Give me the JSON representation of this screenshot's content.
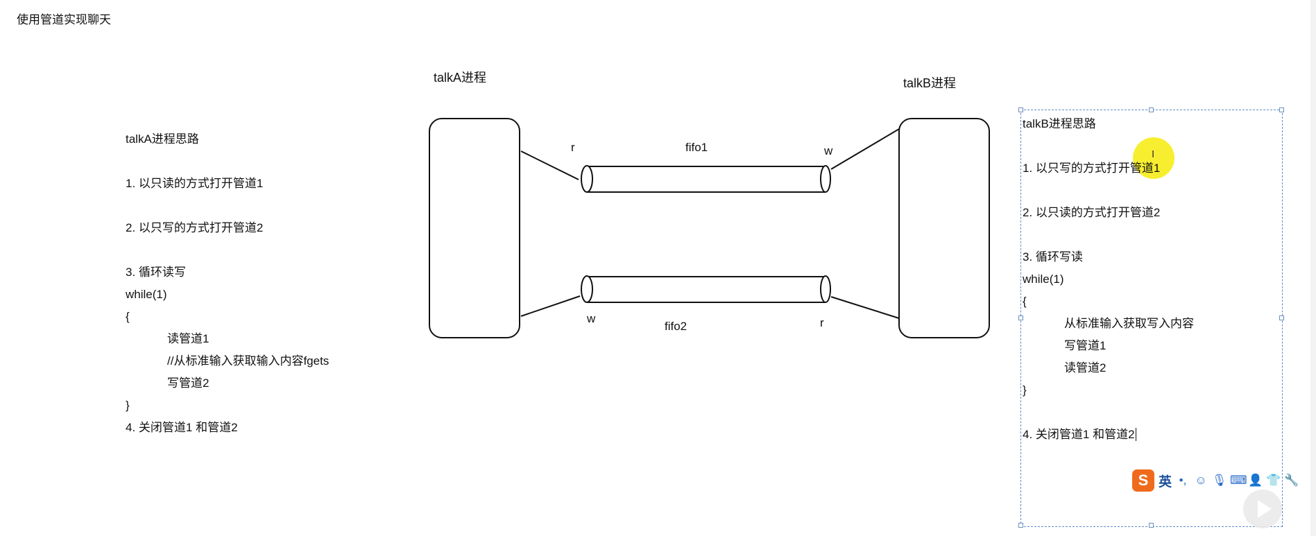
{
  "page": {
    "title": "使用管道实现聊天"
  },
  "diagram": {
    "process_a": {
      "label": "talkA进程"
    },
    "process_b": {
      "label": "talkB进程"
    },
    "fifo1": {
      "label": "fifo1",
      "left_end": "r",
      "right_end": "w"
    },
    "fifo2": {
      "label": "fifo2",
      "left_end": "w",
      "right_end": "r"
    }
  },
  "notes_a": {
    "lines": [
      "talkA进程思路",
      "",
      "1. 以只读的方式打开管道1",
      "",
      "2. 以只写的方式打开管道2",
      "",
      "3. 循环读写",
      "while(1)",
      "{",
      "读管道1",
      "//从标准输入获取输入内容fgets",
      "写管道2",
      "}",
      "4. 关闭管道1 和管道2"
    ]
  },
  "notes_b": {
    "lines": [
      "talkB进程思路",
      "",
      "1. 以只写的方式打开管道1",
      "",
      "2. 以只读的方式打开管道2",
      "",
      "3. 循环写读",
      "while(1)",
      "{",
      "从标准输入获取写入内容",
      "写管道1",
      "读管道2",
      "}",
      "",
      "4. 关闭管道1 和管道2"
    ]
  },
  "ime": {
    "logo": "S",
    "lang": "英",
    "icons": [
      "punctuation-icon",
      "emoji-icon",
      "microphone-icon",
      "keyboard-icon",
      "user-icon",
      "shirt-icon",
      "wrench-icon"
    ],
    "accent": "#f06a1c"
  },
  "colors": {
    "highlight": "#f6ec1a",
    "selection_border": "#5b8bc7"
  }
}
